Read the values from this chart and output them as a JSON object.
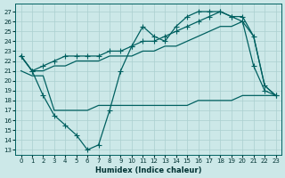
{
  "xlabel": "Humidex (Indice chaleur)",
  "background_color": "#cce8e8",
  "grid_color": "#aacfcf",
  "line_color": "#006060",
  "xlim": [
    -0.5,
    23.5
  ],
  "ylim": [
    12.5,
    27.8
  ],
  "ytick_vals": [
    13,
    14,
    15,
    16,
    17,
    18,
    19,
    20,
    21,
    22,
    23,
    24,
    25,
    26,
    27
  ],
  "xtick_vals": [
    0,
    1,
    2,
    3,
    4,
    5,
    6,
    7,
    8,
    9,
    10,
    11,
    12,
    13,
    14,
    15,
    16,
    17,
    18,
    19,
    20,
    21,
    22,
    23
  ],
  "line_zigzag_x": [
    0,
    1,
    2,
    3,
    4,
    5,
    6,
    7,
    8,
    9,
    10,
    11,
    12,
    13,
    14,
    15,
    16,
    17,
    18,
    19,
    20,
    21,
    22,
    23
  ],
  "line_zigzag_y": [
    22.5,
    21.0,
    18.5,
    16.5,
    15.5,
    14.5,
    13.0,
    13.5,
    17.0,
    21.0,
    23.5,
    25.5,
    24.5,
    24.0,
    25.5,
    26.5,
    27.0,
    27.0,
    27.0,
    26.5,
    26.0,
    21.5,
    19.0,
    18.5
  ],
  "line_upper_x": [
    0,
    1,
    2,
    3,
    4,
    5,
    6,
    7,
    8,
    9,
    10,
    11,
    12,
    13,
    14,
    15,
    16,
    17,
    18,
    19,
    20,
    21,
    22,
    23
  ],
  "line_upper_y": [
    22.5,
    21.0,
    21.5,
    22.0,
    22.5,
    22.5,
    22.5,
    22.5,
    23.0,
    23.0,
    23.5,
    24.0,
    24.0,
    24.5,
    25.0,
    25.5,
    26.0,
    26.5,
    27.0,
    26.5,
    26.5,
    24.5,
    19.5,
    18.5
  ],
  "line_lower_x": [
    0,
    1,
    2,
    3,
    4,
    5,
    6,
    7,
    8,
    9,
    10,
    11,
    12,
    13,
    14,
    15,
    16,
    17,
    18,
    19,
    20,
    21,
    22,
    23
  ],
  "line_lower_y": [
    22.5,
    21.0,
    21.0,
    21.5,
    21.5,
    22.0,
    22.0,
    22.0,
    22.5,
    22.5,
    22.5,
    23.0,
    23.0,
    23.5,
    23.5,
    24.0,
    24.5,
    25.0,
    25.5,
    25.5,
    26.0,
    24.5,
    19.5,
    18.5
  ],
  "line_flat_x": [
    0,
    1,
    2,
    3,
    4,
    5,
    6,
    7,
    8,
    9,
    10,
    11,
    12,
    13,
    14,
    15,
    16,
    17,
    18,
    19,
    20,
    21,
    22,
    23
  ],
  "line_flat_y": [
    21.0,
    20.5,
    20.5,
    17.0,
    17.0,
    17.0,
    17.0,
    17.5,
    17.5,
    17.5,
    17.5,
    17.5,
    17.5,
    17.5,
    17.5,
    17.5,
    18.0,
    18.0,
    18.0,
    18.0,
    18.5,
    18.5,
    18.5,
    18.5
  ]
}
